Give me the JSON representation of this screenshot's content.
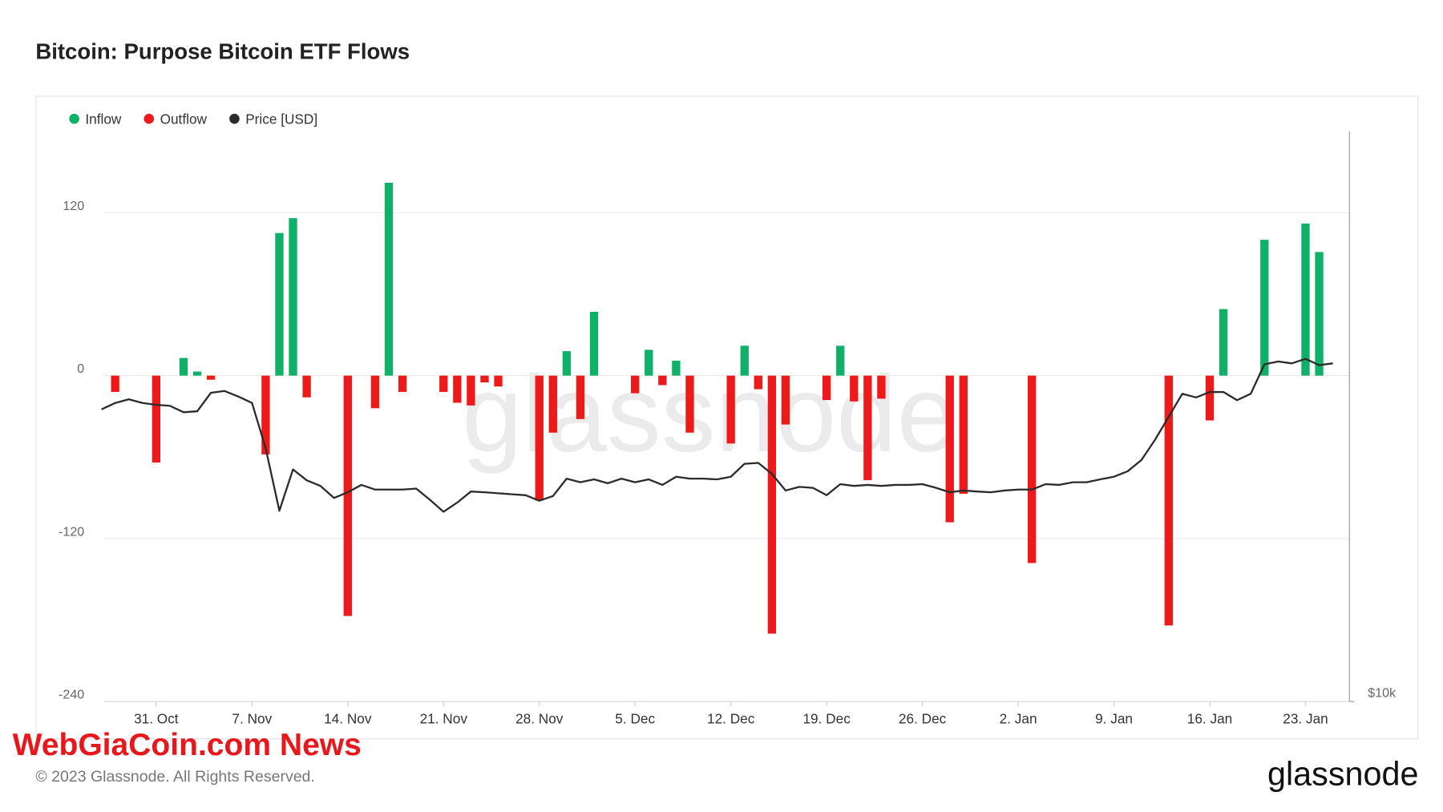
{
  "chart_data": {
    "type": "bar",
    "title": "Bitcoin: Purpose Bitcoin ETF Flows",
    "categories": [
      null,
      null,
      null,
      null,
      "31. Oct",
      null,
      null,
      null,
      null,
      null,
      null,
      "7. Nov",
      null,
      null,
      null,
      null,
      null,
      null,
      "14. Nov",
      null,
      null,
      null,
      null,
      null,
      null,
      "21. Nov",
      null,
      null,
      null,
      null,
      null,
      null,
      "28. Nov",
      null,
      null,
      null,
      null,
      null,
      null,
      "5. Dec",
      null,
      null,
      null,
      null,
      null,
      null,
      "12. Dec",
      null,
      null,
      null,
      null,
      null,
      null,
      "19. Dec",
      null,
      null,
      null,
      null,
      null,
      null,
      "26. Dec",
      null,
      null,
      null,
      null,
      null,
      null,
      "2. Jan",
      null,
      null,
      null,
      null,
      null,
      null,
      "9. Jan",
      null,
      null,
      null,
      null,
      null,
      null,
      "16. Jan",
      null,
      null,
      null,
      null,
      null,
      null,
      "23. Jan",
      null,
      null
    ],
    "series": [
      {
        "name": "Inflow",
        "color": "#0fb169",
        "type": "bar",
        "values": [
          null,
          null,
          null,
          null,
          null,
          null,
          13,
          3,
          null,
          null,
          null,
          null,
          null,
          105,
          116,
          null,
          null,
          null,
          null,
          null,
          null,
          142,
          null,
          null,
          null,
          null,
          null,
          null,
          null,
          null,
          null,
          null,
          null,
          null,
          18,
          null,
          47,
          null,
          null,
          null,
          19,
          null,
          11,
          null,
          null,
          null,
          null,
          22,
          null,
          null,
          null,
          null,
          null,
          null,
          22,
          null,
          null,
          null,
          null,
          null,
          null,
          null,
          null,
          null,
          null,
          null,
          null,
          null,
          null,
          null,
          null,
          null,
          null,
          null,
          null,
          null,
          null,
          null,
          null,
          null,
          null,
          null,
          49,
          null,
          null,
          100,
          null,
          null,
          112,
          91,
          null
        ]
      },
      {
        "name": "Outflow",
        "color": "#ee1a1a",
        "type": "bar",
        "values": [
          null,
          -12,
          null,
          null,
          -64,
          null,
          null,
          null,
          -3,
          null,
          null,
          null,
          -58,
          null,
          null,
          -16,
          null,
          null,
          -177,
          null,
          -24,
          null,
          -12,
          null,
          null,
          -12,
          -20,
          -22,
          -5,
          -8,
          null,
          null,
          -92,
          -42,
          null,
          -32,
          null,
          null,
          null,
          -13,
          null,
          -7,
          null,
          -42,
          null,
          null,
          -50,
          null,
          -10,
          -190,
          -36,
          null,
          null,
          -18,
          null,
          -19,
          -77,
          -17,
          null,
          null,
          null,
          null,
          -108,
          -87,
          null,
          null,
          null,
          null,
          -138,
          null,
          null,
          null,
          null,
          null,
          null,
          null,
          null,
          null,
          -184,
          null,
          null,
          -33,
          null,
          null,
          null,
          null,
          null,
          null,
          null,
          null,
          null
        ]
      },
      {
        "name": "Price [USD]",
        "color": "#2b2b2b",
        "type": "line",
        "axis": "y2",
        "values": [
          20340,
          20660,
          20850,
          20660,
          20570,
          20520,
          20200,
          20250,
          21180,
          21270,
          20990,
          20660,
          18510,
          15900,
          17580,
          17120,
          16890,
          16400,
          16630,
          16930,
          16740,
          16740,
          16740,
          16780,
          16330,
          15860,
          16220,
          16660,
          16630,
          16590,
          16550,
          16510,
          16290,
          16480,
          17190,
          17040,
          17160,
          17000,
          17190,
          17040,
          17160,
          16930,
          17270,
          17190,
          17190,
          17160,
          17270,
          17820,
          17860,
          17390,
          16700,
          16850,
          16810,
          16510,
          16960,
          16890,
          16930,
          16890,
          16930,
          16930,
          16960,
          16810,
          16630,
          16700,
          16660,
          16630,
          16700,
          16740,
          16740,
          16960,
          16930,
          17040,
          17040,
          17160,
          17270,
          17500,
          17980,
          18890,
          19980,
          21130,
          20940,
          21220,
          21220,
          20800,
          21130,
          22700,
          22850,
          22750,
          23000,
          22650,
          22750
        ]
      }
    ],
    "ylim": [
      -240,
      180
    ],
    "yticks": [
      -240,
      -120,
      0,
      120
    ],
    "y2lim": [
      10000,
      40000
    ],
    "y2scale": "log",
    "y2ticks": [
      {
        "value": 10000,
        "label": "$10k"
      }
    ],
    "grid": true,
    "legend": "top-left",
    "watermark": "glassnode"
  },
  "footer": {
    "copyright": "© 2023 Glassnode. All Rights Reserved.",
    "logo": "glassnode",
    "overlay": "WebGiaCoin.com News"
  }
}
